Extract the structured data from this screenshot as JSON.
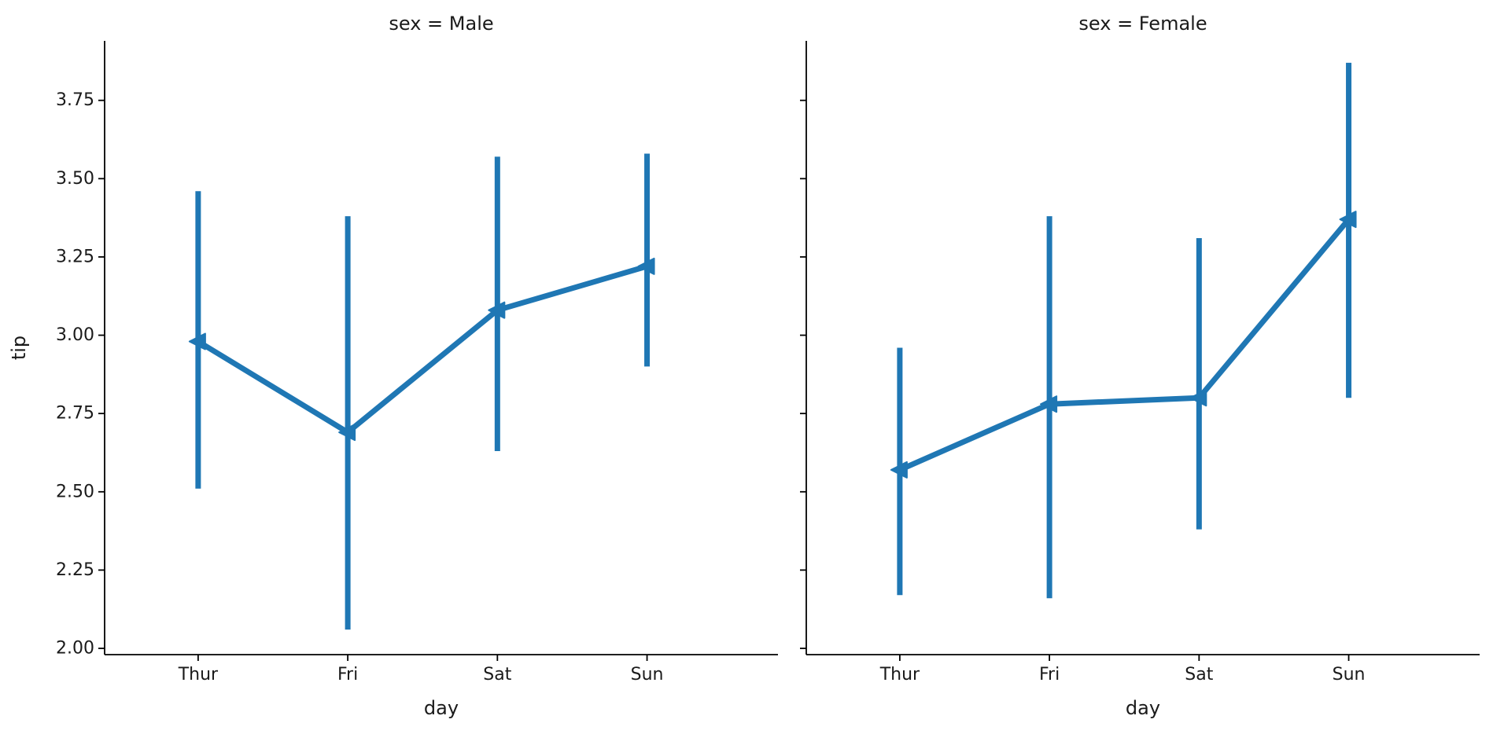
{
  "chart_data": [
    {
      "type": "line",
      "title": "sex = Male",
      "xlabel": "day",
      "ylabel": "tip",
      "categories": [
        "Thur",
        "Fri",
        "Sat",
        "Sun"
      ],
      "ylim": [
        1.98,
        3.94
      ],
      "yticks": [
        "2.00",
        "2.25",
        "2.50",
        "2.75",
        "3.00",
        "3.25",
        "3.50",
        "3.75"
      ],
      "series": [
        {
          "values": [
            2.98,
            2.69,
            3.08,
            3.22
          ],
          "ci_low": [
            2.51,
            2.06,
            2.63,
            2.9
          ],
          "ci_high": [
            3.46,
            3.38,
            3.57,
            3.58
          ]
        }
      ],
      "color": "#1f77b4",
      "marker": "left-pointing triangle"
    },
    {
      "type": "line",
      "title": "sex = Female",
      "xlabel": "day",
      "ylabel": "",
      "categories": [
        "Thur",
        "Fri",
        "Sat",
        "Sun"
      ],
      "ylim": [
        1.98,
        3.94
      ],
      "yticks": [
        "2.00",
        "2.25",
        "2.50",
        "2.75",
        "3.00",
        "3.25",
        "3.50",
        "3.75"
      ],
      "series": [
        {
          "values": [
            2.57,
            2.78,
            2.8,
            3.37
          ],
          "ci_low": [
            2.17,
            2.16,
            2.38,
            2.8
          ],
          "ci_high": [
            2.96,
            3.38,
            3.31,
            3.87
          ]
        }
      ],
      "color": "#1f77b4",
      "marker": "left-pointing triangle"
    }
  ]
}
